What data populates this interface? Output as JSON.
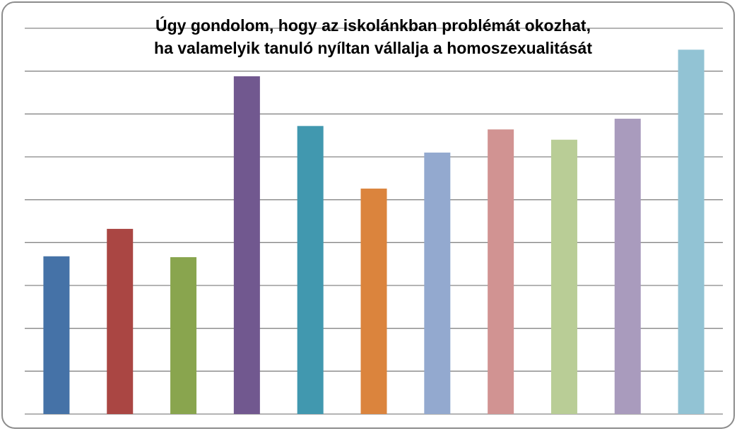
{
  "chart_data": {
    "type": "bar",
    "title": [
      "Úgy gondolom, hogy az iskolánkban problémát okozhat,",
      "ha valamelyik tanuló nyíltan vállalja a homoszexualitását"
    ],
    "categories": [
      null,
      null,
      null,
      null,
      null,
      null,
      null,
      null,
      null,
      null,
      null
    ],
    "values": [
      3.68,
      4.32,
      3.66,
      7.88,
      6.72,
      5.26,
      6.1,
      6.64,
      6.4,
      6.89,
      8.5
    ],
    "colors": [
      "#4572a7",
      "#aa4643",
      "#89a54e",
      "#71588f",
      "#4198af",
      "#db843d",
      "#93a9cf",
      "#d19392",
      "#b9cd96",
      "#a99bbd",
      "#92c3d4"
    ],
    "ylim": [
      0,
      9
    ],
    "yticks": [
      0,
      1,
      2,
      3,
      4,
      5,
      6,
      7,
      8,
      9
    ],
    "grid": true
  }
}
